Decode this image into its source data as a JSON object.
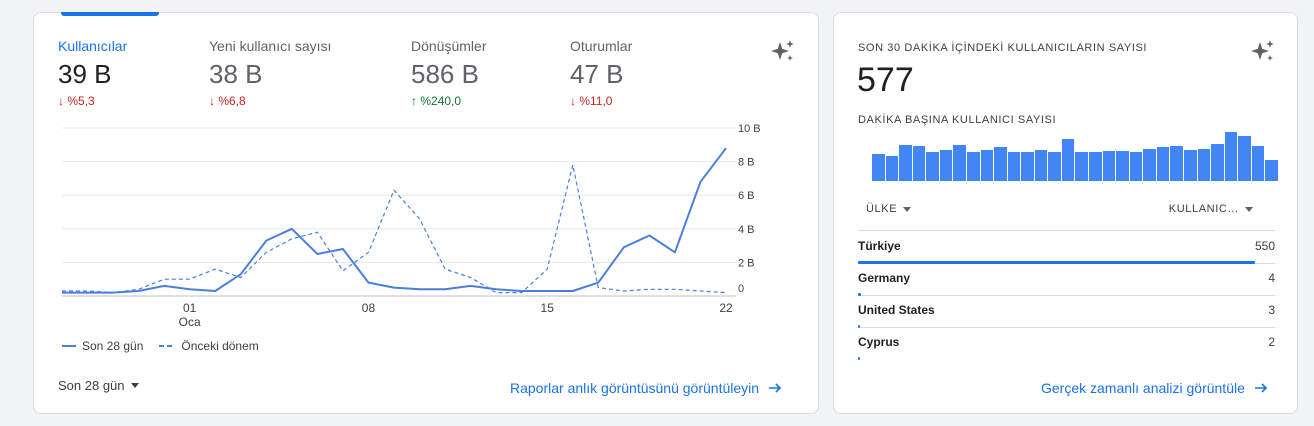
{
  "main_card": {
    "metrics": [
      {
        "label": "Kullanıcılar",
        "value": "39 B",
        "change": "%5,3",
        "direction": "down",
        "active": true
      },
      {
        "label": "Yeni kullanıcı sayısı",
        "value": "38 B",
        "change": "%6,8",
        "direction": "down",
        "active": false
      },
      {
        "label": "Dönüşümler",
        "value": "586 B",
        "change": "%240,0",
        "direction": "up",
        "active": false
      },
      {
        "label": "Oturumlar",
        "value": "47 B",
        "change": "%11,0",
        "direction": "down",
        "active": false
      }
    ],
    "date_range": "Son 28 gün",
    "link_label": "Raporlar anlık görüntüsünü görüntüleyin",
    "icons": {
      "insights": "sparkle-icon",
      "arrow": "arrow-right-icon",
      "dropdown": "caret-down-icon",
      "arrow_down": "arrow-down-icon",
      "arrow_up": "arrow-up-icon"
    }
  },
  "chart_data": {
    "type": "line",
    "x_tick_labels": [
      {
        "index": 5,
        "label": "01",
        "sublabel": "Oca"
      },
      {
        "index": 12,
        "label": "08"
      },
      {
        "index": 19,
        "label": "15"
      },
      {
        "index": 26,
        "label": "22"
      }
    ],
    "y_tick_labels": [
      "0",
      "2 B",
      "4 B",
      "6 B",
      "8 B",
      "10 B"
    ],
    "y_ticks": [
      0,
      2,
      4,
      6,
      8,
      10
    ],
    "ylim": [
      0,
      10
    ],
    "y_unit": "B",
    "grid": true,
    "legend_position": "bottom-left",
    "series": [
      {
        "name": "Son 28 gün",
        "style": "solid",
        "color": "#4a7fdb",
        "values": [
          0.2,
          0.2,
          0.2,
          0.3,
          0.6,
          0.4,
          0.3,
          1.3,
          3.3,
          4.0,
          2.5,
          2.8,
          0.8,
          0.5,
          0.4,
          0.4,
          0.6,
          0.4,
          0.3,
          0.3,
          0.3,
          0.8,
          2.9,
          3.6,
          2.6,
          6.8,
          8.8
        ]
      },
      {
        "name": "Önceki dönem",
        "style": "dashed",
        "color": "#4a7fdb",
        "values": [
          0.3,
          0.3,
          0.2,
          0.4,
          1.0,
          1.0,
          1.6,
          1.1,
          2.6,
          3.4,
          3.8,
          1.5,
          2.6,
          6.3,
          4.6,
          1.6,
          1.1,
          0.2,
          0.2,
          1.6,
          7.8,
          0.5,
          0.3,
          0.4,
          0.4,
          0.3,
          0.2
        ]
      }
    ]
  },
  "realtime_card": {
    "title": "SON 30 DAKİKA İÇİNDEKİ KULLANICILARIN SAYISI",
    "value": "577",
    "subtitle": "DAKİKA BAŞINA KULLANICI SAYISI",
    "bar_values": [
      22,
      20,
      29,
      28,
      23,
      25,
      29,
      23,
      25,
      27,
      23,
      23,
      25,
      23,
      34,
      23,
      23,
      24,
      24,
      23,
      26,
      27,
      28,
      25,
      26,
      30,
      39,
      36,
      28,
      17
    ],
    "table": {
      "col_country": "ÜLKE",
      "col_users": "KULLANIC…",
      "rows": [
        {
          "name": "Türkiye",
          "value": "550",
          "share": 0.953
        },
        {
          "name": "Germany",
          "value": "4",
          "share": 0.007
        },
        {
          "name": "United States",
          "value": "3",
          "share": 0.005
        },
        {
          "name": "Cyprus",
          "value": "2",
          "share": 0.0035
        }
      ]
    },
    "link_label": "Gerçek zamanlı analizi görüntüle",
    "colors": {
      "accent": "#1a73e8",
      "bar": "#4285f4",
      "down": "#c5221f",
      "up": "#137333"
    }
  }
}
